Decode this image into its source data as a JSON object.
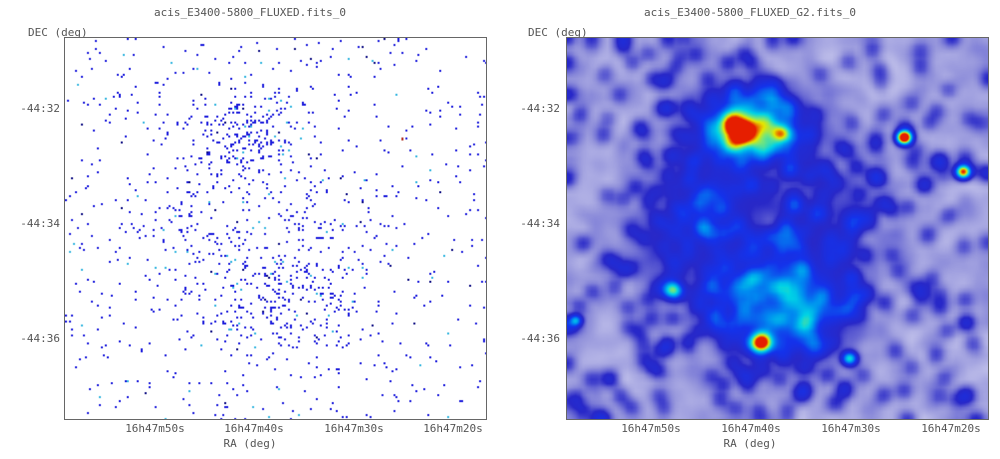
{
  "panels": [
    {
      "title": "acis_E3400-5800_FLUXED.fits_0",
      "ylabel": "DEC (deg)",
      "xlabel": "RA (deg)",
      "yticks": [
        "-44:32",
        "-44:34",
        "-44:36"
      ],
      "xticks": [
        "16h47m50s",
        "16h47m40s",
        "16h47m30s",
        "16h47m20s"
      ],
      "colors": {
        "background": "#ffffff",
        "pixel_main": "#1a1adc",
        "pixel_accent": "#33b6e0",
        "rare": "#d04010"
      }
    },
    {
      "title": "acis_E3400-5800_FLUXED_G2.fits_0",
      "ylabel": "DEC (deg)",
      "xlabel": "RA (deg)",
      "yticks": [
        "-44:32",
        "-44:34",
        "-44:36"
      ],
      "xticks": [
        "16h47m50s",
        "16h47m40s",
        "16h47m30s",
        "16h47m20s"
      ],
      "colors": {
        "low": "#ffffff",
        "mid": "#2040e0",
        "high": "#00d0e0",
        "peak": "#e8e800",
        "hot": "#e02000"
      }
    }
  ]
}
